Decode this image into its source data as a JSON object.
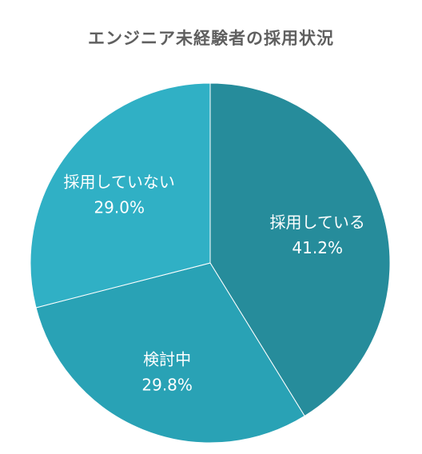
{
  "chart_data": {
    "type": "pie",
    "title": "エンジニア未経験者の採用状況",
    "slices": [
      {
        "name": "採用している",
        "value": 41.2,
        "label": "41.2%",
        "color": "#268c9b"
      },
      {
        "name": "検討中",
        "value": 29.8,
        "label": "29.8%",
        "color": "#29a2b5"
      },
      {
        "name": "採用していない",
        "value": 29.0,
        "label": "29.0%",
        "color": "#30b0c5"
      }
    ],
    "start": "top",
    "direction": "clockwise",
    "legend": "none"
  }
}
